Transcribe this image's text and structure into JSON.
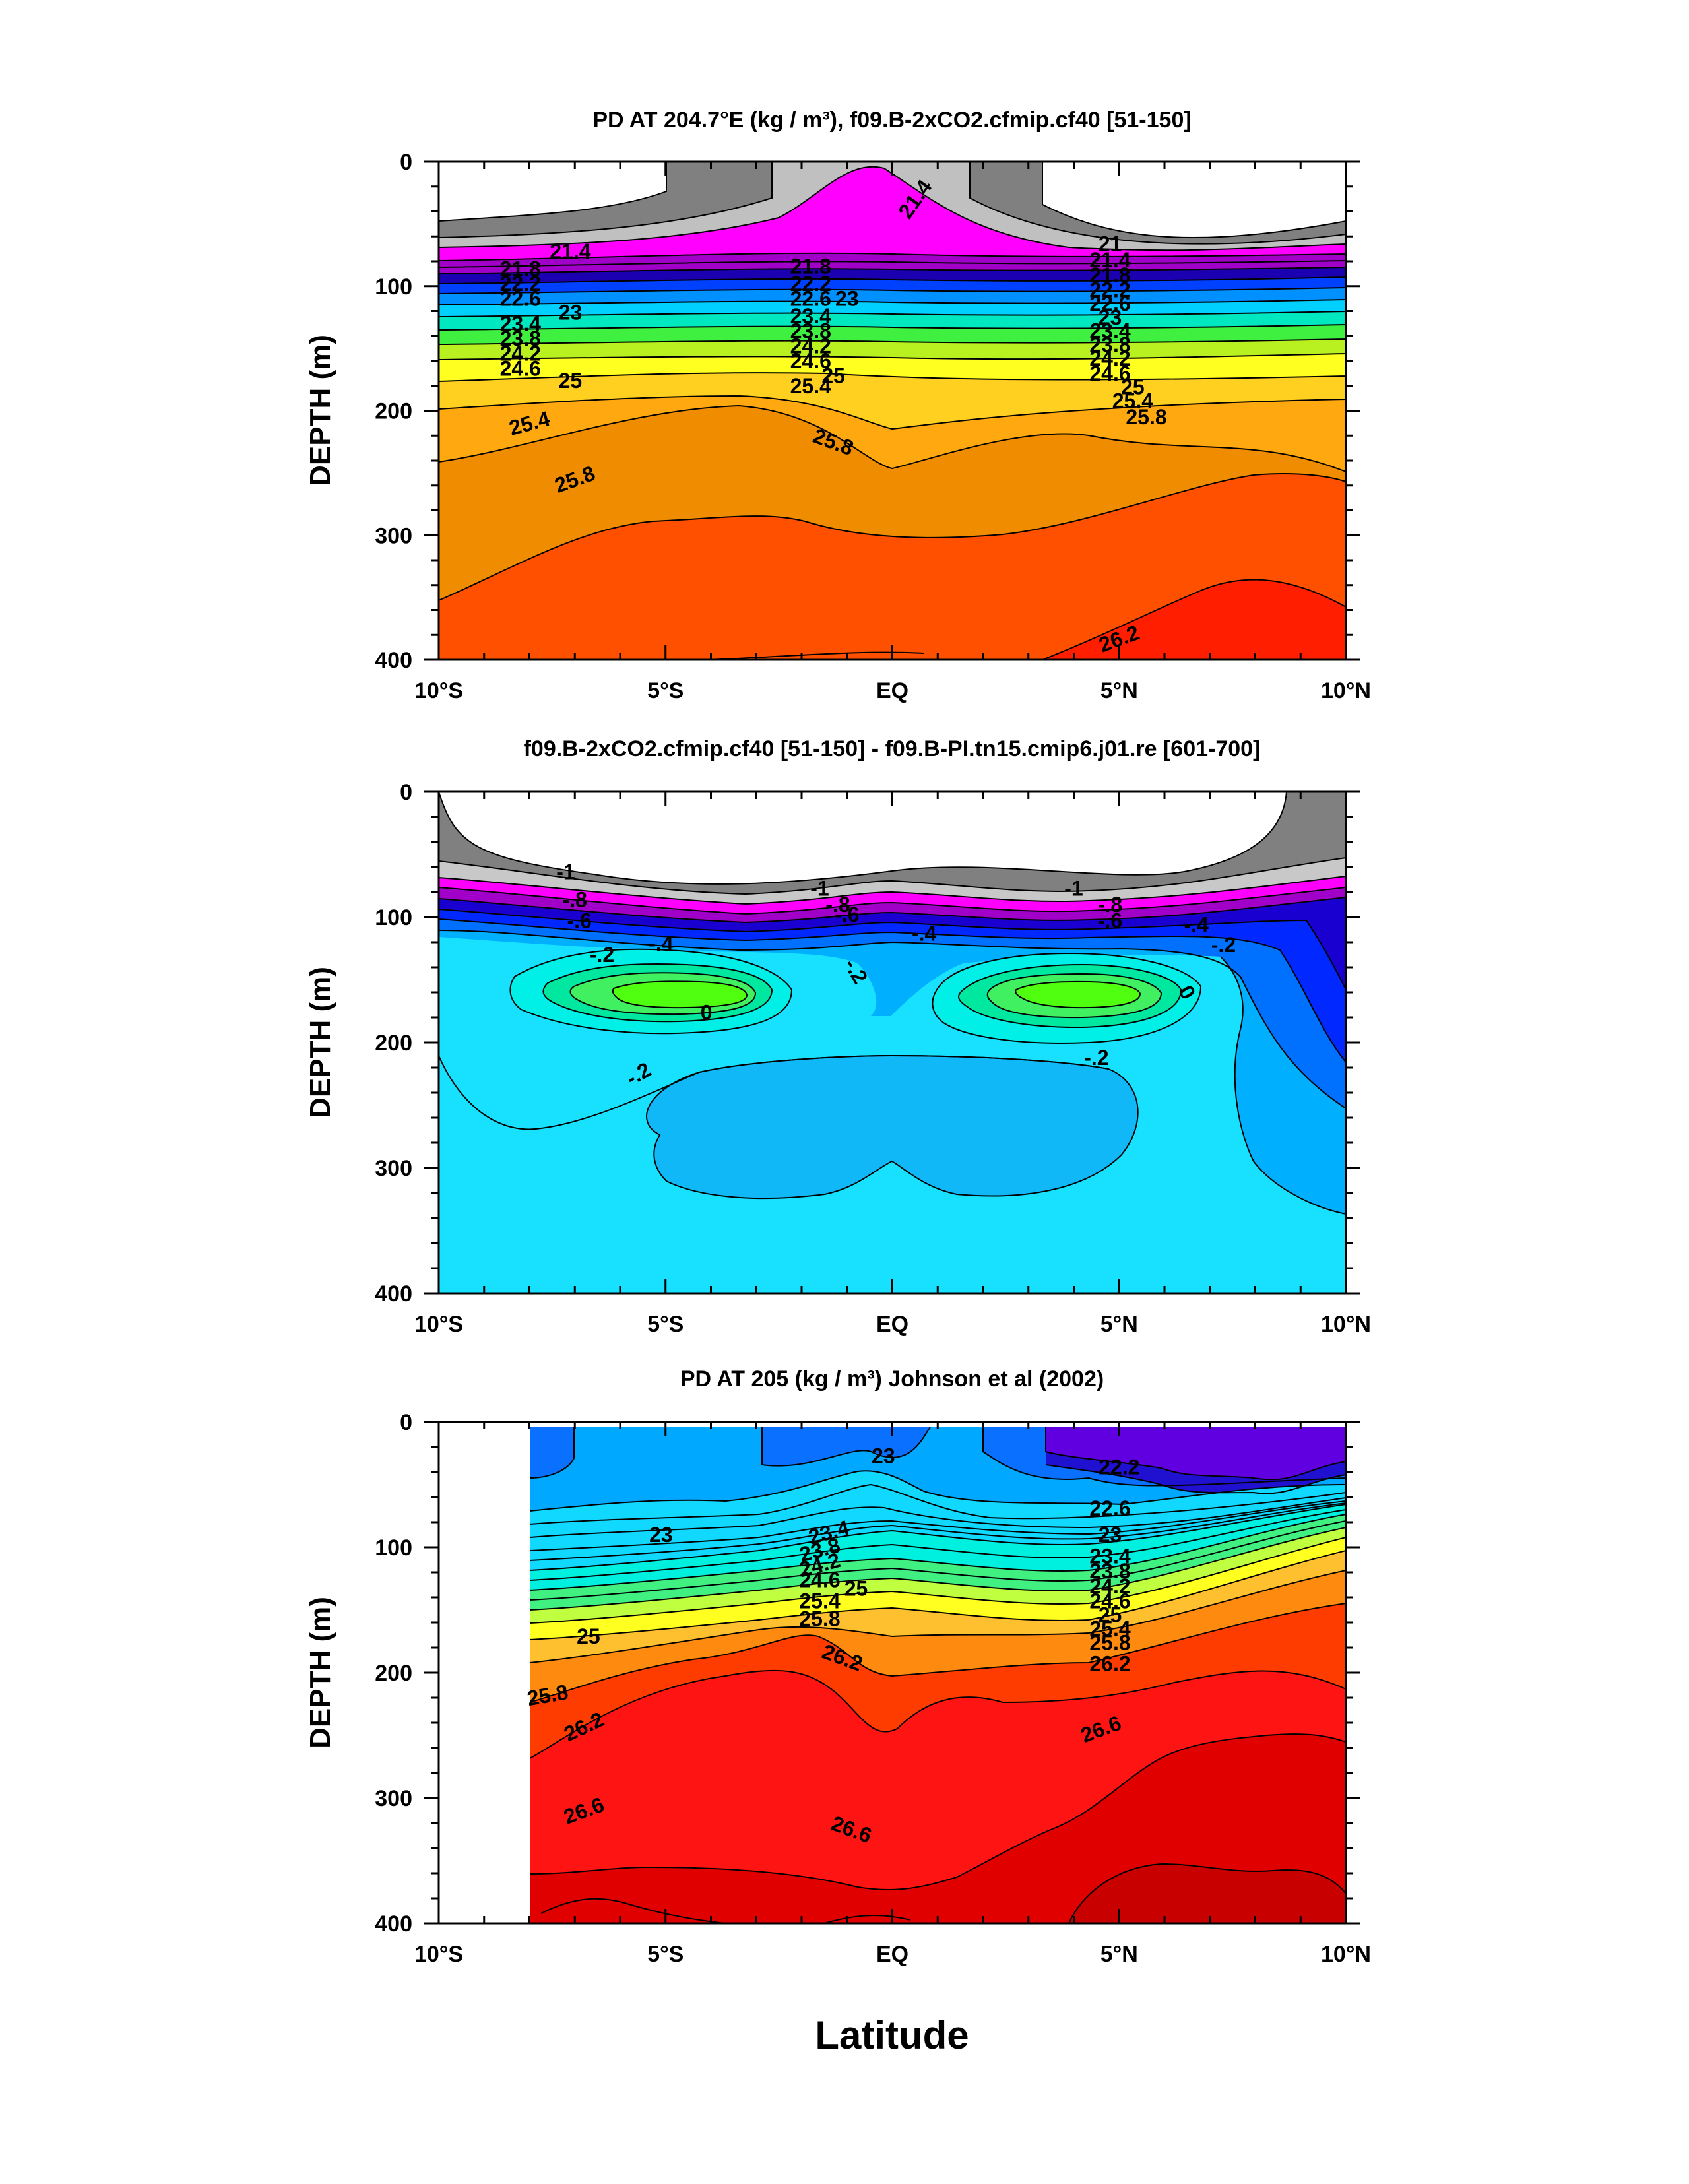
{
  "figure": {
    "xlabel": "Latitude"
  },
  "chart_data": [
    {
      "type": "contour",
      "title": "PD AT 204.7°E (kg / m³), f09.B-2xCO2.cfmip.cf40 [51-150]",
      "ylabel": "DEPTH (m)",
      "xlim": [
        -10,
        10
      ],
      "ylim": [
        0,
        400
      ],
      "y_inverted": true,
      "xticks": [
        "10°S",
        "5°S",
        "EQ",
        "5°N",
        "10°N"
      ],
      "yticks": [
        "0",
        "100",
        "200",
        "300",
        "400"
      ],
      "contour_labels": [
        {
          "text": "21.4",
          "x": 0.5,
          "y": 30,
          "rotate": -55
        },
        {
          "text": "21",
          "x": 4.8,
          "y": 66,
          "rotate": 0
        },
        {
          "text": "21.4",
          "x": -7.1,
          "y": 72,
          "rotate": 0
        },
        {
          "text": "21.8",
          "x": -8.2,
          "y": 86,
          "rotate": 0
        },
        {
          "text": "21.8",
          "x": -1.8,
          "y": 84,
          "rotate": 0
        },
        {
          "text": "21.4",
          "x": 4.8,
          "y": 79,
          "rotate": 0
        },
        {
          "text": "21.8",
          "x": 4.8,
          "y": 91,
          "rotate": 0
        },
        {
          "text": "22.2",
          "x": -8.2,
          "y": 98,
          "rotate": 0
        },
        {
          "text": "22.2",
          "x": -1.8,
          "y": 98,
          "rotate": 0
        },
        {
          "text": "22.2",
          "x": 4.8,
          "y": 103,
          "rotate": 0
        },
        {
          "text": "22.6",
          "x": -8.2,
          "y": 110,
          "rotate": 0
        },
        {
          "text": "22.6",
          "x": -1.8,
          "y": 110,
          "rotate": 0
        },
        {
          "text": "23",
          "x": -1.0,
          "y": 110,
          "rotate": 0
        },
        {
          "text": "22.6",
          "x": 4.8,
          "y": 114,
          "rotate": 0
        },
        {
          "text": "23",
          "x": -7.1,
          "y": 121,
          "rotate": 0
        },
        {
          "text": "23",
          "x": 4.8,
          "y": 125,
          "rotate": 0
        },
        {
          "text": "23.4",
          "x": -8.2,
          "y": 130,
          "rotate": 0
        },
        {
          "text": "23.4",
          "x": -1.8,
          "y": 124,
          "rotate": 0
        },
        {
          "text": "23.4",
          "x": 4.8,
          "y": 136,
          "rotate": 0
        },
        {
          "text": "23.8",
          "x": -8.2,
          "y": 142,
          "rotate": 0
        },
        {
          "text": "23.8",
          "x": -1.8,
          "y": 136,
          "rotate": 0
        },
        {
          "text": "23.8",
          "x": 4.8,
          "y": 147,
          "rotate": 0
        },
        {
          "text": "24.2",
          "x": -8.2,
          "y": 154,
          "rotate": 0
        },
        {
          "text": "24.2",
          "x": -1.8,
          "y": 148,
          "rotate": 0
        },
        {
          "text": "24.2",
          "x": 4.8,
          "y": 158,
          "rotate": 0
        },
        {
          "text": "24.6",
          "x": -8.2,
          "y": 166,
          "rotate": 0
        },
        {
          "text": "24.6",
          "x": -1.8,
          "y": 160,
          "rotate": 0
        },
        {
          "text": "24.6",
          "x": 4.8,
          "y": 170,
          "rotate": 0
        },
        {
          "text": "25",
          "x": -7.1,
          "y": 176,
          "rotate": 0
        },
        {
          "text": "25",
          "x": -1.3,
          "y": 172,
          "rotate": 0
        },
        {
          "text": "25",
          "x": 5.3,
          "y": 181,
          "rotate": 0
        },
        {
          "text": "25.4",
          "x": -8.0,
          "y": 210,
          "rotate": -15
        },
        {
          "text": "25.4",
          "x": -1.8,
          "y": 180,
          "rotate": 0
        },
        {
          "text": "25.4",
          "x": 5.3,
          "y": 192,
          "rotate": 0
        },
        {
          "text": "25.8",
          "x": -7.0,
          "y": 255,
          "rotate": -20
        },
        {
          "text": "25.8",
          "x": -1.3,
          "y": 225,
          "rotate": 20
        },
        {
          "text": "25.8",
          "x": 5.6,
          "y": 205,
          "rotate": 0
        },
        {
          "text": "26.2",
          "x": 5.0,
          "y": 383,
          "rotate": -20
        }
      ]
    },
    {
      "type": "contour",
      "title": "f09.B-2xCO2.cfmip.cf40 [51-150] - f09.B-PI.tn15.cmip6.j01.re [601-700]",
      "ylabel": "DEPTH (m)",
      "xlim": [
        -10,
        10
      ],
      "ylim": [
        0,
        400
      ],
      "y_inverted": true,
      "xticks": [
        "10°S",
        "5°S",
        "EQ",
        "5°N",
        "10°N"
      ],
      "yticks": [
        "0",
        "100",
        "200",
        "300",
        "400"
      ],
      "contour_labels": [
        {
          "text": "-1",
          "x": -7.2,
          "y": 64,
          "rotate": 0
        },
        {
          "text": "-1",
          "x": -1.6,
          "y": 77,
          "rotate": 0
        },
        {
          "text": "-1",
          "x": 4.0,
          "y": 77,
          "rotate": 0
        },
        {
          "text": "-.8",
          "x": -7.0,
          "y": 86,
          "rotate": 0
        },
        {
          "text": "-.8",
          "x": -1.2,
          "y": 90,
          "rotate": 0
        },
        {
          "text": "-.8",
          "x": 4.8,
          "y": 90,
          "rotate": 0
        },
        {
          "text": "-.6",
          "x": -6.9,
          "y": 103,
          "rotate": 0
        },
        {
          "text": "-.6",
          "x": -1.0,
          "y": 98,
          "rotate": 0
        },
        {
          "text": "-.6",
          "x": 4.8,
          "y": 103,
          "rotate": 0
        },
        {
          "text": "-.4",
          "x": -5.1,
          "y": 121,
          "rotate": 0
        },
        {
          "text": "-.4",
          "x": 0.7,
          "y": 113,
          "rotate": 0
        },
        {
          "text": "-.4",
          "x": 6.7,
          "y": 106,
          "rotate": 0
        },
        {
          "text": "-.2",
          "x": -6.4,
          "y": 130,
          "rotate": 0
        },
        {
          "text": "-.2",
          "x": -0.8,
          "y": 143,
          "rotate": 60
        },
        {
          "text": "-.2",
          "x": 7.3,
          "y": 122,
          "rotate": 0
        },
        {
          "text": "0",
          "x": -4.1,
          "y": 176,
          "rotate": 0
        },
        {
          "text": "0",
          "x": 6.5,
          "y": 160,
          "rotate": 60
        },
        {
          "text": "-.2",
          "x": -5.6,
          "y": 225,
          "rotate": -30
        },
        {
          "text": "-.2",
          "x": 4.5,
          "y": 212,
          "rotate": 0
        }
      ]
    },
    {
      "type": "contour",
      "title": "PD AT 205 (kg / m³) Johnson et al (2002)",
      "ylabel": "DEPTH (m)",
      "xlim": [
        -10,
        10
      ],
      "ylim": [
        0,
        400
      ],
      "y_inverted": true,
      "xticks": [
        "10°S",
        "5°S",
        "EQ",
        "5°N",
        "10°N"
      ],
      "yticks": [
        "0",
        "100",
        "200",
        "300",
        "400"
      ],
      "contour_labels": [
        {
          "text": "23",
          "x": -0.2,
          "y": 27,
          "rotate": 0
        },
        {
          "text": "22.2",
          "x": 5.0,
          "y": 36,
          "rotate": 0
        },
        {
          "text": "22.6",
          "x": 4.8,
          "y": 69,
          "rotate": 0
        },
        {
          "text": "23",
          "x": -5.1,
          "y": 90,
          "rotate": 0
        },
        {
          "text": "23",
          "x": 4.8,
          "y": 90,
          "rotate": 0
        },
        {
          "text": "23.4",
          "x": -1.4,
          "y": 88,
          "rotate": -15
        },
        {
          "text": "23.4",
          "x": 4.8,
          "y": 107,
          "rotate": 0
        },
        {
          "text": "23.8",
          "x": -1.6,
          "y": 102,
          "rotate": -15
        },
        {
          "text": "23.8",
          "x": 4.8,
          "y": 119,
          "rotate": 0
        },
        {
          "text": "24.2",
          "x": -1.6,
          "y": 114,
          "rotate": -15
        },
        {
          "text": "24.2",
          "x": 4.8,
          "y": 131,
          "rotate": 0
        },
        {
          "text": "24.6",
          "x": -1.6,
          "y": 126,
          "rotate": 0
        },
        {
          "text": "24.6",
          "x": 4.8,
          "y": 143,
          "rotate": 0
        },
        {
          "text": "25",
          "x": -0.8,
          "y": 133,
          "rotate": 0
        },
        {
          "text": "25",
          "x": 4.8,
          "y": 154,
          "rotate": 0
        },
        {
          "text": "25",
          "x": -6.7,
          "y": 171,
          "rotate": 0
        },
        {
          "text": "25.4",
          "x": -1.6,
          "y": 143,
          "rotate": 0
        },
        {
          "text": "25.4",
          "x": 4.8,
          "y": 165,
          "rotate": 0
        },
        {
          "text": "25.8",
          "x": -1.6,
          "y": 157,
          "rotate": 0
        },
        {
          "text": "25.8",
          "x": 4.8,
          "y": 176,
          "rotate": 0
        },
        {
          "text": "25.8",
          "x": -7.6,
          "y": 218,
          "rotate": -10
        },
        {
          "text": "26.2",
          "x": -1.1,
          "y": 188,
          "rotate": 20
        },
        {
          "text": "26.2",
          "x": 4.8,
          "y": 193,
          "rotate": 0
        },
        {
          "text": "26.2",
          "x": -6.8,
          "y": 243,
          "rotate": -25
        },
        {
          "text": "26.6",
          "x": 4.6,
          "y": 245,
          "rotate": -20
        },
        {
          "text": "26.6",
          "x": -6.8,
          "y": 310,
          "rotate": -20
        },
        {
          "text": "26.6",
          "x": -0.9,
          "y": 325,
          "rotate": 20
        }
      ]
    }
  ]
}
